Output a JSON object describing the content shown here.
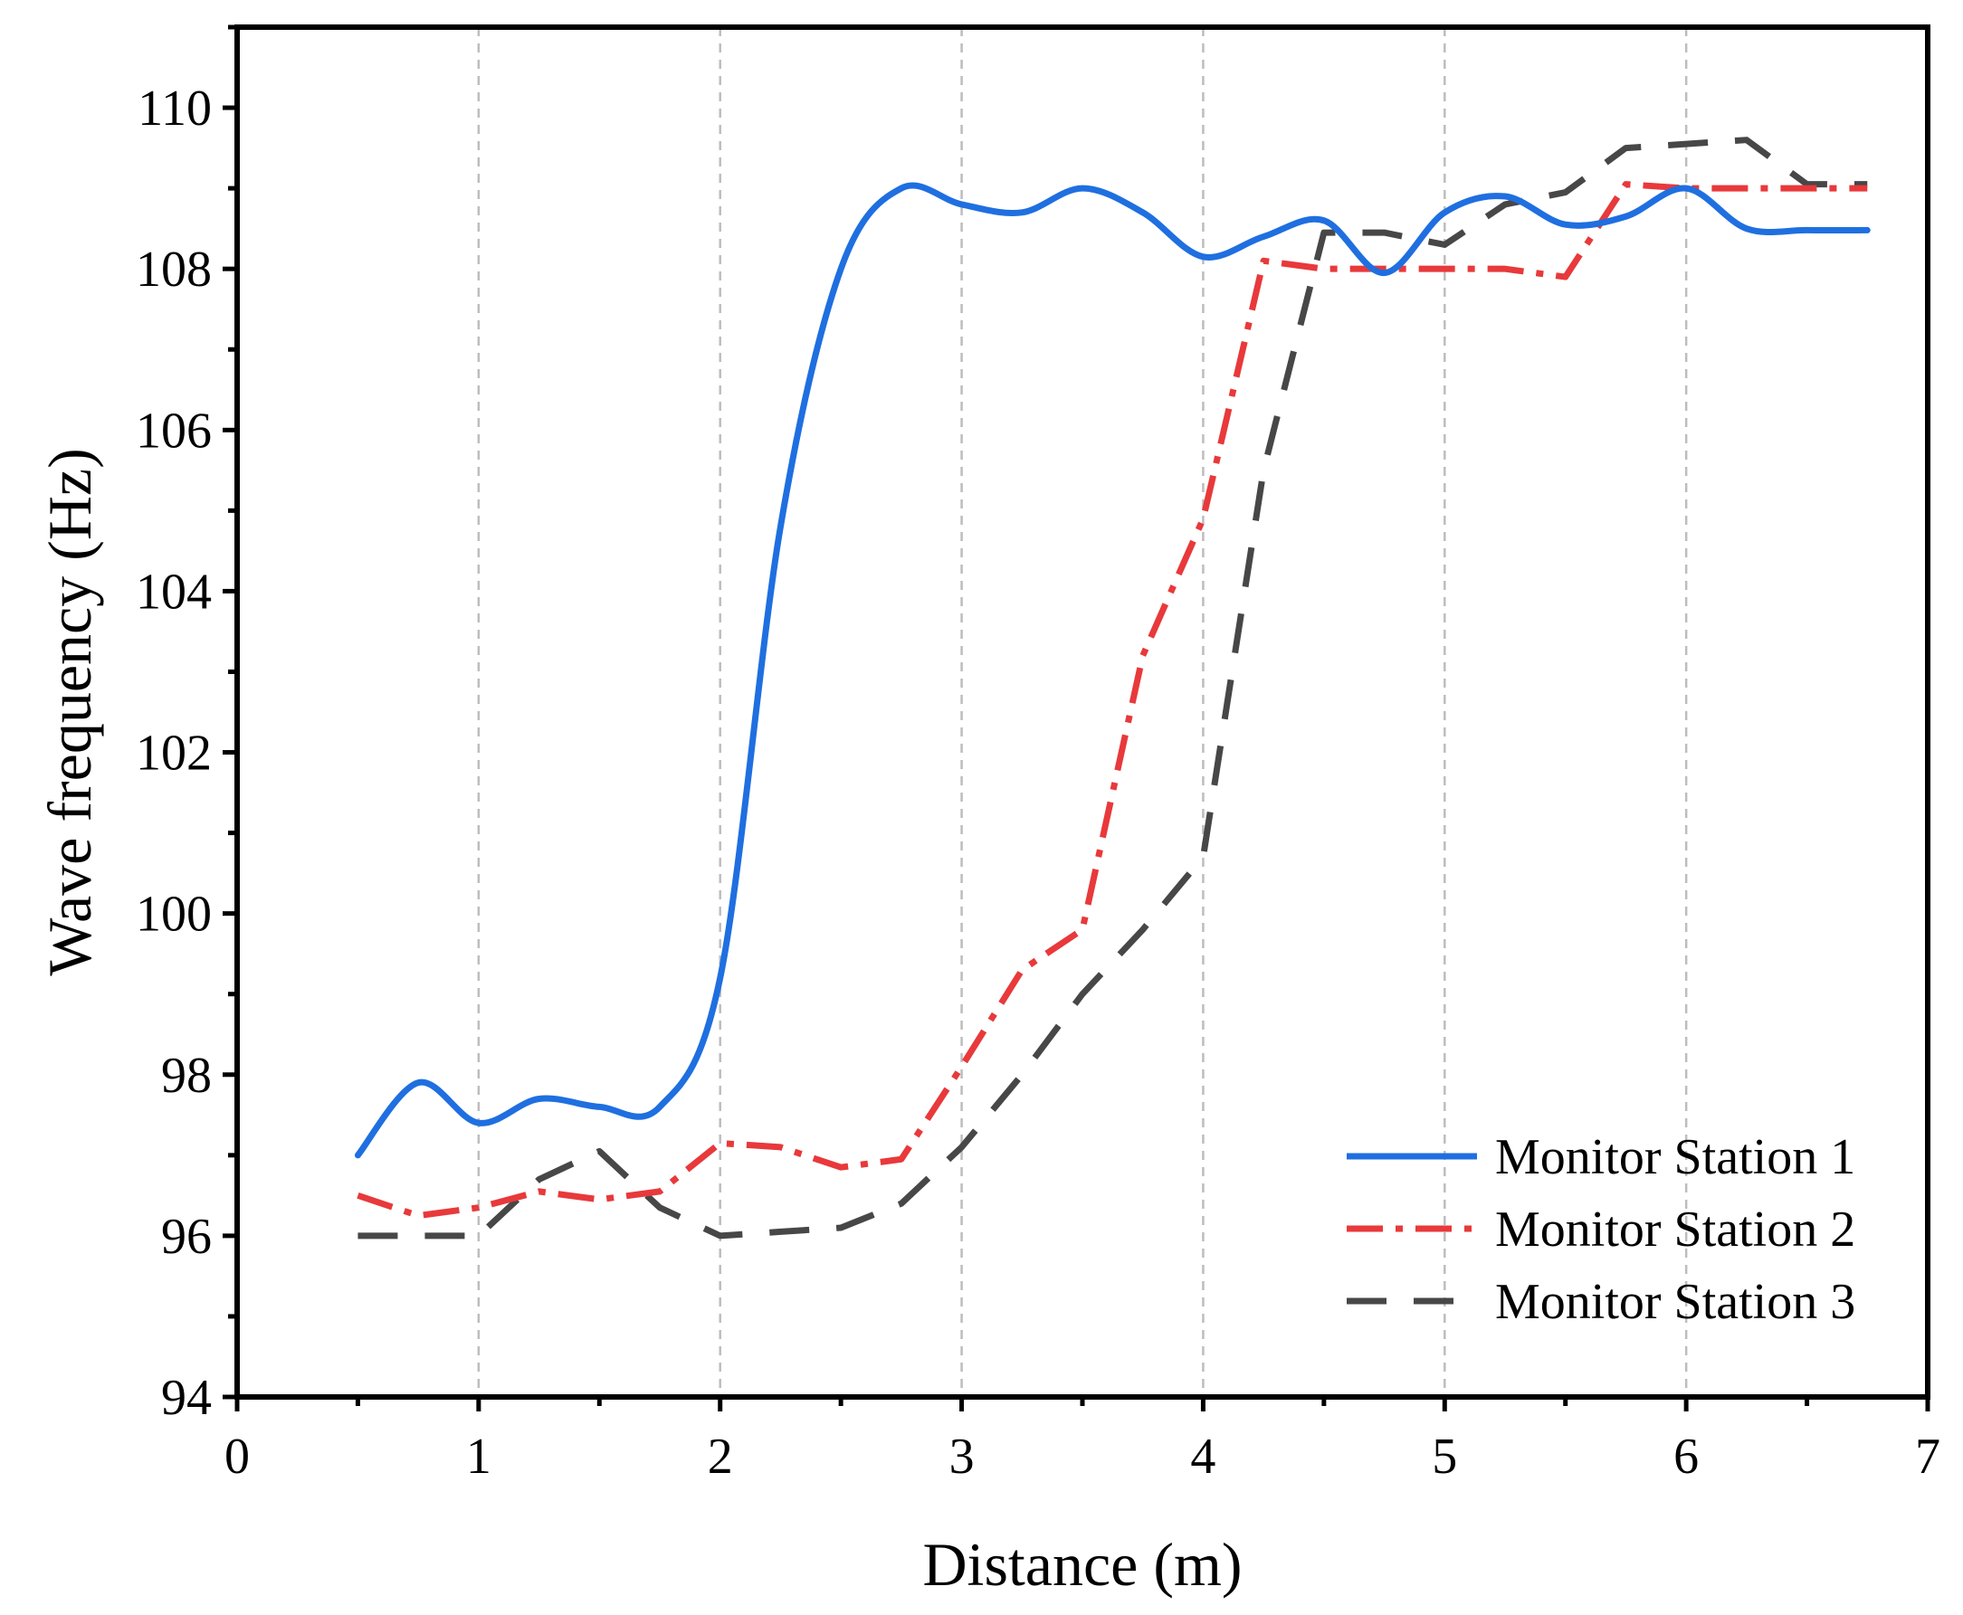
{
  "chart_data": {
    "type": "line",
    "title": "",
    "xlabel": "Distance (m)",
    "ylabel": "Wave frequency (Hz)",
    "xlim": [
      0,
      7
    ],
    "ylim": [
      94,
      111
    ],
    "xticks": [
      0,
      1,
      2,
      3,
      4,
      5,
      6,
      7
    ],
    "yticks": [
      94,
      96,
      98,
      100,
      102,
      104,
      106,
      108,
      110
    ],
    "grid": "vertical dashed at major x ticks",
    "legend_position": "bottom-right",
    "series": [
      {
        "name": "Monitor Station 1",
        "color": "#1f6fe0",
        "style": "solid",
        "smooth": true,
        "x": [
          0.5,
          0.75,
          1.0,
          1.25,
          1.5,
          1.75,
          2.0,
          2.25,
          2.5,
          2.75,
          3.0,
          3.25,
          3.5,
          3.75,
          4.0,
          4.25,
          4.5,
          4.75,
          5.0,
          5.25,
          5.5,
          5.75,
          6.0,
          6.25,
          6.5,
          6.75
        ],
        "y": [
          97.0,
          97.9,
          97.4,
          97.7,
          97.6,
          97.6,
          99.2,
          104.8,
          108.0,
          109.0,
          108.8,
          108.7,
          109.0,
          108.7,
          108.15,
          108.4,
          108.6,
          107.95,
          108.7,
          108.9,
          108.55,
          108.65,
          109.0,
          108.5,
          108.48,
          108.48
        ]
      },
      {
        "name": "Monitor Station 2",
        "color": "#e8393b",
        "style": "dash-dot",
        "smooth": false,
        "x": [
          0.5,
          0.75,
          1.0,
          1.25,
          1.5,
          1.75,
          2.0,
          2.25,
          2.5,
          2.75,
          3.0,
          3.25,
          3.5,
          3.75,
          4.0,
          4.25,
          4.5,
          4.75,
          5.0,
          5.25,
          5.5,
          5.75,
          6.0,
          6.25,
          6.5,
          6.75
        ],
        "y": [
          96.5,
          96.25,
          96.35,
          96.55,
          96.45,
          96.55,
          97.15,
          97.1,
          96.85,
          96.95,
          98.1,
          99.3,
          99.8,
          103.2,
          104.9,
          108.1,
          108.0,
          108.0,
          108.0,
          108.0,
          107.9,
          109.05,
          109.0,
          109.0,
          109.0,
          109.0
        ]
      },
      {
        "name": "Monitor Station 3",
        "color": "#474747",
        "style": "dashed",
        "smooth": false,
        "x": [
          0.5,
          0.75,
          1.0,
          1.25,
          1.5,
          1.75,
          2.0,
          2.25,
          2.5,
          2.75,
          3.0,
          3.25,
          3.5,
          3.75,
          4.0,
          4.25,
          4.5,
          4.75,
          5.0,
          5.25,
          5.5,
          5.75,
          6.0,
          6.25,
          6.5,
          6.75
        ],
        "y": [
          96.0,
          96.0,
          96.0,
          96.7,
          97.05,
          96.35,
          96.0,
          96.05,
          96.1,
          96.4,
          97.1,
          98.0,
          99.0,
          99.8,
          100.7,
          105.5,
          108.45,
          108.45,
          108.3,
          108.8,
          108.95,
          109.5,
          109.55,
          109.6,
          109.05,
          109.05
        ]
      }
    ]
  }
}
